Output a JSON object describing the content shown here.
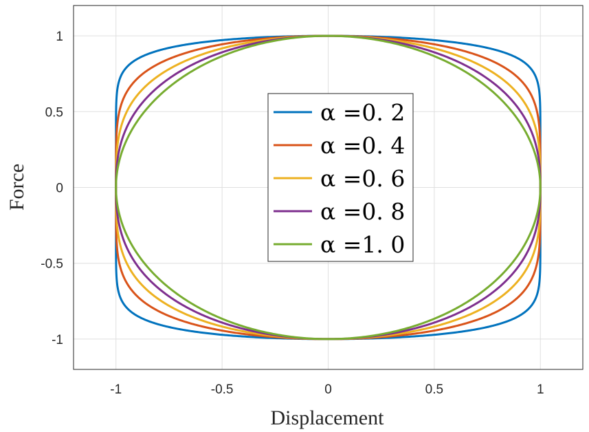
{
  "chart_data": {
    "type": "line",
    "title": "",
    "xlabel": "Displacement",
    "ylabel": "Force",
    "xlim": [
      -1.2,
      1.2
    ],
    "ylim": [
      -1.2,
      1.2
    ],
    "xticks": [
      -1,
      -0.5,
      0,
      0.5,
      1
    ],
    "yticks": [
      -1,
      -0.5,
      0,
      0.5,
      1
    ],
    "xtick_labels": [
      "-1",
      "-0.5",
      "0",
      "0.5",
      "1"
    ],
    "ytick_labels": [
      "-1",
      "-0.5",
      "0",
      "0.5",
      "1"
    ],
    "grid": true,
    "legend_position": "center",
    "x_param": "cos(t), t in [0, 2π]",
    "y_param": "sign(sin(t))·|sin(t)|^α",
    "series": [
      {
        "name": "α =0. 2",
        "alpha": 0.2,
        "color": "#0072BD"
      },
      {
        "name": "α =0. 4",
        "alpha": 0.4,
        "color": "#D95319"
      },
      {
        "name": "α =0. 6",
        "alpha": 0.6,
        "color": "#EDB120"
      },
      {
        "name": "α =0. 8",
        "alpha": 0.8,
        "color": "#7E2F8E"
      },
      {
        "name": "α =1. 0",
        "alpha": 1.0,
        "color": "#77AC30"
      }
    ]
  }
}
